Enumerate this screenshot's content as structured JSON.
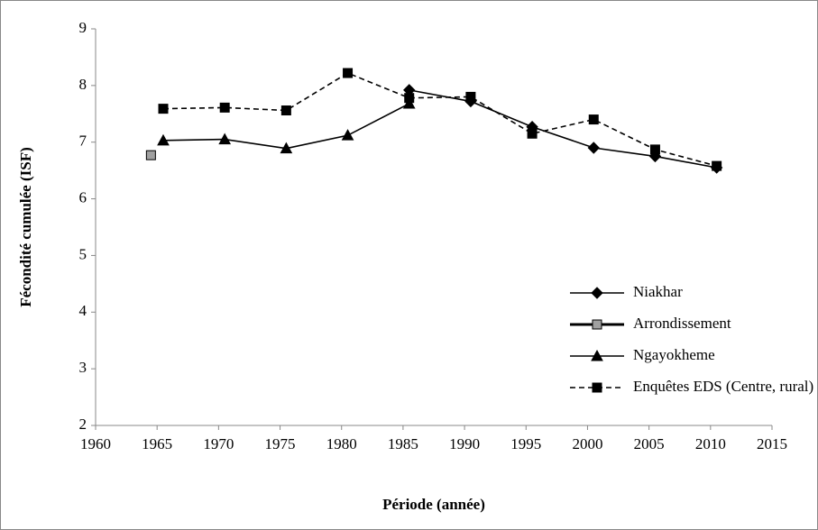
{
  "chart_data": {
    "type": "line",
    "xlabel": "Période (année)",
    "ylabel": "Fécondité cumulée (ISF)",
    "xlim": [
      1960,
      2015
    ],
    "xticks": [
      1960,
      1965,
      1970,
      1975,
      1980,
      1985,
      1990,
      1995,
      2000,
      2005,
      2010,
      2015
    ],
    "ylim": [
      2,
      9
    ],
    "yticks": [
      2,
      3,
      4,
      5,
      6,
      7,
      8,
      9
    ],
    "legend": "lower-right",
    "series": [
      {
        "name": "Niakhar",
        "color": "#000000",
        "marker": "diamond",
        "marker_fill": "#000000",
        "line_style": "solid",
        "x": [
          1985.5,
          1990.5,
          1995.5,
          2000.5,
          2005.5,
          2010.5
        ],
        "values": [
          7.92,
          7.72,
          7.27,
          6.9,
          6.75,
          6.55
        ]
      },
      {
        "name": "Arrondissement",
        "color": "#000000",
        "marker": "square",
        "marker_fill": "#a0a0a0",
        "line_style": "thick",
        "x": [
          1964.5
        ],
        "values": [
          6.77
        ]
      },
      {
        "name": "Ngayokheme",
        "color": "#000000",
        "marker": "triangle",
        "marker_fill": "#000000",
        "line_style": "solid",
        "x": [
          1965.5,
          1970.5,
          1975.5,
          1980.5,
          1985.5
        ],
        "values": [
          7.03,
          7.05,
          6.89,
          7.12,
          7.68
        ]
      },
      {
        "name": "Enquêtes EDS (Centre, rural)",
        "color": "#000000",
        "marker": "square",
        "marker_fill": "#000000",
        "line_style": "dashed",
        "x": [
          1965.5,
          1970.5,
          1975.5,
          1980.5,
          1985.5,
          1990.5,
          1995.5,
          2000.5,
          2005.5,
          2010.5
        ],
        "values": [
          7.59,
          7.61,
          7.56,
          8.22,
          7.78,
          7.8,
          7.15,
          7.4,
          6.87,
          6.58
        ]
      }
    ]
  }
}
